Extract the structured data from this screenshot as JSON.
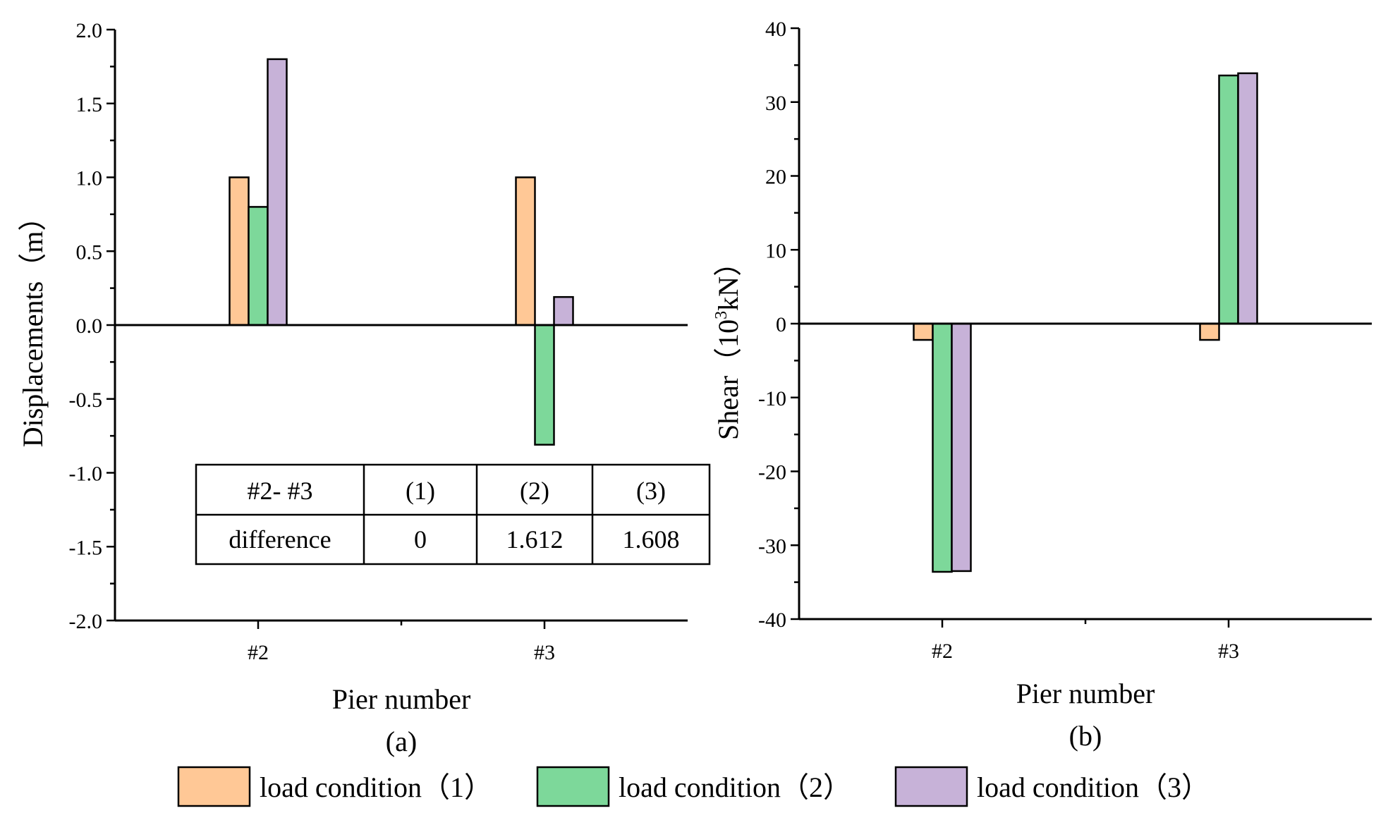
{
  "chart_data": [
    {
      "panel": "(a)",
      "type": "bar",
      "categories": [
        "#2",
        "#3"
      ],
      "series": [
        {
          "name": "load condition（1）",
          "values": [
            1.0,
            1.0
          ]
        },
        {
          "name": "load condition（2）",
          "values": [
            0.8,
            -0.81
          ]
        },
        {
          "name": "load condition（3）",
          "values": [
            1.8,
            0.19
          ]
        }
      ],
      "xlabel": "Pier number",
      "ylabel": "Displacements（m）",
      "ylim": [
        -2.0,
        2.0
      ],
      "yticks": [
        "-2.0",
        "-1.5",
        "-1.0",
        "-0.5",
        "0.0",
        "0.5",
        "1.0",
        "1.5",
        "2.0"
      ],
      "ytick_values": [
        -2.0,
        -1.5,
        -1.0,
        -0.5,
        0.0,
        0.5,
        1.0,
        1.5,
        2.0
      ],
      "grid": false,
      "inset_table": {
        "header": [
          "#2- #3",
          "(1)",
          "(2)",
          "(3)"
        ],
        "row": [
          "difference",
          "0",
          "1.612",
          "1.608"
        ]
      }
    },
    {
      "panel": "(b)",
      "type": "bar",
      "categories": [
        "#2",
        "#3"
      ],
      "series": [
        {
          "name": "load condition（1）",
          "values": [
            -2.2,
            -2.2
          ]
        },
        {
          "name": "load condition（2）",
          "values": [
            -33.6,
            33.6
          ]
        },
        {
          "name": "load condition（3）",
          "values": [
            -33.5,
            33.9
          ]
        }
      ],
      "xlabel": "Pier number",
      "ylabel_main": "Shear（10",
      "ylabel_sup": "3",
      "ylabel_tail": "kN）",
      "ylim": [
        -40,
        40
      ],
      "yticks": [
        "-40",
        "-30",
        "-20",
        "-10",
        "0",
        "10",
        "20",
        "30",
        "40"
      ],
      "ytick_values": [
        -40,
        -30,
        -20,
        -10,
        0,
        10,
        20,
        30,
        40
      ],
      "grid": false
    }
  ],
  "legend": {
    "entries": [
      "load condition（1）",
      "load condition（2）",
      "load condition（3）"
    ],
    "placement": "bottom"
  },
  "colors": {
    "series": [
      "#FFC896",
      "#7DD89A",
      "#C7B2D8"
    ],
    "stroke": "#000000"
  }
}
